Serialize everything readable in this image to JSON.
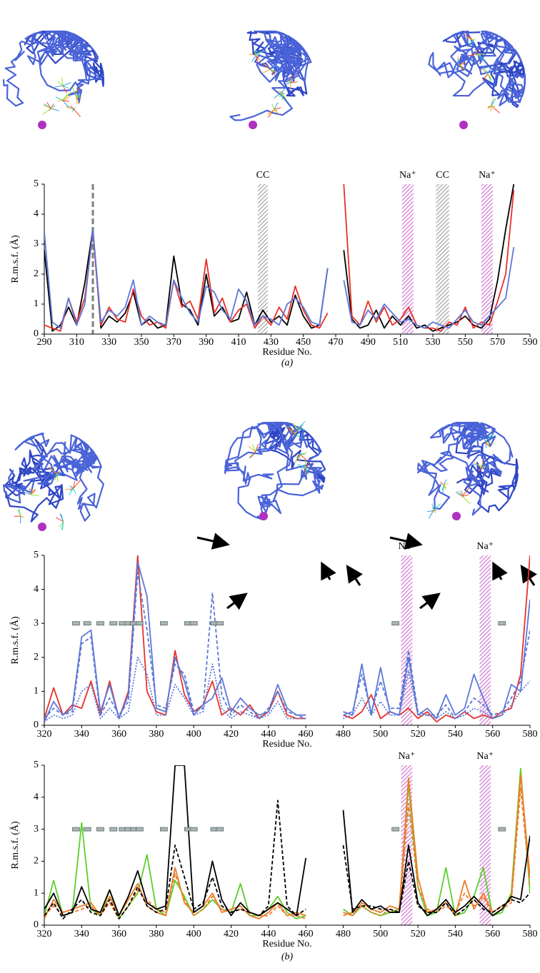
{
  "chart_data": [
    {
      "type": "line",
      "y_label": "R.m.s.f. (Å)",
      "x_label": "Residue No.",
      "panel_label": "(a)",
      "xlim": [
        290,
        590
      ],
      "xticks": [
        290,
        310,
        330,
        350,
        370,
        390,
        410,
        430,
        450,
        470,
        490,
        510,
        530,
        550,
        570,
        590
      ],
      "ylim": [
        0,
        5
      ],
      "yticks": [
        0,
        1,
        2,
        3,
        4,
        5
      ],
      "vline": {
        "x": 320,
        "color": "#7f7f7f"
      },
      "bands": [
        {
          "label": "CC",
          "from": 422,
          "to": 428,
          "color": "#a8a8a8"
        },
        {
          "label": "Na⁺",
          "from": 511,
          "to": 518,
          "color": "#d27fd2"
        },
        {
          "label": "CC",
          "from": 532,
          "to": 540,
          "color": "#a8a8a8"
        },
        {
          "label": "Na⁺",
          "from": 560,
          "to": 567,
          "color": "#d27fd2"
        }
      ],
      "x": [
        290,
        295,
        300,
        305,
        310,
        315,
        320,
        325,
        330,
        335,
        340,
        345,
        350,
        355,
        360,
        365,
        370,
        375,
        380,
        385,
        390,
        395,
        400,
        405,
        410,
        415,
        420,
        425,
        430,
        435,
        440,
        445,
        450,
        455,
        460,
        465,
        470,
        475,
        480,
        485,
        490,
        495,
        500,
        505,
        510,
        515,
        520,
        525,
        530,
        535,
        540,
        545,
        550,
        555,
        560,
        565,
        570,
        575,
        580
      ],
      "series": [
        {
          "color": "#000000",
          "dash": "solid",
          "values": [
            2.8,
            0.1,
            0.3,
            0.9,
            0.3,
            1.7,
            3.5,
            0.2,
            0.6,
            0.4,
            0.7,
            1.4,
            0.3,
            0.5,
            0.2,
            0.3,
            2.6,
            1.0,
            0.8,
            0.3,
            2.0,
            0.6,
            0.9,
            0.4,
            0.5,
            1.4,
            0.3,
            0.8,
            0.4,
            0.6,
            0.3,
            1.3,
            0.6,
            0.2,
            0.3,
            2.2,
            null,
            2.8,
            0.5,
            0.2,
            0.3,
            0.8,
            0.2,
            0.6,
            0.3,
            0.6,
            0.2,
            0.3,
            0.1,
            0.2,
            0.3,
            0.4,
            0.6,
            0.3,
            0.2,
            0.5,
            1.8,
            3.5,
            5.0
          ]
        },
        {
          "color": "#e8302a",
          "dash": "solid",
          "values": [
            0.3,
            0.2,
            0.1,
            1.2,
            0.4,
            1.2,
            3.4,
            0.3,
            0.9,
            0.5,
            0.4,
            1.5,
            0.6,
            0.3,
            0.4,
            0.2,
            1.8,
            0.9,
            1.1,
            0.5,
            2.5,
            0.7,
            1.2,
            0.4,
            0.8,
            1.0,
            0.2,
            0.6,
            0.3,
            0.9,
            0.5,
            1.6,
            0.8,
            0.3,
            0.2,
            0.7,
            null,
            5.0,
            0.6,
            0.3,
            1.1,
            0.4,
            0.9,
            0.3,
            0.5,
            0.9,
            0.3,
            0.2,
            0.2,
            0.1,
            0.4,
            0.3,
            0.9,
            0.2,
            0.4,
            0.3,
            1.1,
            2.0,
            4.8
          ]
        },
        {
          "color": "#5b78d8",
          "dash": "solid",
          "values": [
            3.4,
            0.4,
            0.2,
            1.2,
            0.3,
            1.0,
            3.5,
            0.4,
            0.8,
            0.6,
            0.9,
            1.8,
            0.3,
            0.6,
            0.4,
            0.3,
            1.8,
            1.2,
            0.7,
            0.4,
            1.6,
            1.4,
            0.8,
            0.5,
            1.5,
            1.1,
            0.3,
            0.6,
            0.5,
            0.3,
            1.0,
            1.2,
            0.9,
            0.4,
            0.3,
            2.2,
            null,
            1.8,
            0.4,
            0.3,
            0.8,
            0.5,
            1.0,
            0.7,
            0.4,
            0.5,
            0.3,
            0.2,
            0.4,
            0.3,
            0.2,
            0.5,
            0.8,
            0.4,
            0.3,
            0.6,
            0.9,
            1.2,
            2.9
          ]
        }
      ]
    },
    {
      "type": "line",
      "y_label": "R.m.s.f. (Å)",
      "x_label": "Residue No.",
      "xlim": [
        320,
        580
      ],
      "xticks": [
        320,
        340,
        360,
        380,
        400,
        420,
        440,
        460,
        480,
        500,
        520,
        540,
        560,
        580
      ],
      "ylim": [
        0,
        5
      ],
      "yticks": [
        0,
        1,
        2,
        3,
        4,
        5
      ],
      "bands": [
        {
          "label": "Na⁺",
          "from": 511,
          "to": 517,
          "color": "#d27fd2"
        },
        {
          "label": "Na⁺",
          "from": 553,
          "to": 559,
          "color": "#d27fd2"
        }
      ],
      "markers": {
        "y": 3,
        "color": "#a9b4b4",
        "x": [
          337,
          343,
          350,
          357,
          362,
          365,
          368,
          371,
          384,
          397,
          400,
          411,
          414,
          508,
          565
        ]
      },
      "x": [
        320,
        325,
        330,
        335,
        340,
        345,
        350,
        355,
        360,
        365,
        370,
        375,
        380,
        385,
        390,
        395,
        400,
        405,
        410,
        415,
        420,
        425,
        430,
        435,
        440,
        445,
        450,
        455,
        460,
        465,
        470,
        475,
        480,
        485,
        490,
        495,
        500,
        505,
        510,
        515,
        520,
        525,
        530,
        535,
        540,
        545,
        550,
        555,
        560,
        565,
        570,
        575,
        580
      ],
      "series": [
        {
          "color": "#e8302a",
          "dash": "solid",
          "values": [
            0.2,
            1.1,
            0.3,
            0.6,
            0.5,
            1.3,
            0.3,
            1.3,
            0.2,
            1.0,
            5.0,
            1.0,
            0.4,
            0.3,
            2.2,
            0.9,
            0.4,
            0.6,
            1.3,
            0.3,
            0.5,
            0.3,
            0.6,
            0.2,
            0.4,
            1.0,
            0.3,
            0.2,
            0.2,
            null,
            null,
            null,
            0.3,
            0.2,
            0.4,
            0.9,
            0.2,
            0.4,
            0.3,
            0.5,
            0.2,
            0.4,
            0.1,
            0.3,
            0.2,
            0.4,
            0.2,
            0.3,
            0.2,
            0.4,
            0.5,
            1.5,
            5.0
          ]
        },
        {
          "color": "#5b78d8",
          "dash": "solid",
          "values": [
            0.1,
            0.7,
            0.3,
            0.5,
            2.6,
            2.8,
            0.4,
            1.2,
            0.2,
            0.9,
            4.8,
            3.8,
            0.5,
            0.4,
            2.0,
            1.3,
            0.3,
            0.6,
            0.8,
            1.4,
            0.4,
            0.8,
            0.5,
            0.3,
            0.4,
            1.2,
            0.5,
            0.3,
            0.3,
            null,
            null,
            null,
            0.4,
            0.3,
            1.8,
            0.3,
            1.7,
            0.4,
            0.3,
            2.0,
            0.3,
            0.5,
            0.2,
            0.9,
            0.3,
            0.5,
            1.5,
            0.8,
            0.2,
            0.3,
            1.2,
            1.0,
            3.7
          ]
        },
        {
          "color": "#5b78d8",
          "dash": "dashed",
          "values": [
            0.2,
            0.5,
            0.3,
            0.4,
            2.4,
            2.6,
            0.3,
            0.8,
            0.3,
            0.7,
            4.5,
            2.8,
            0.6,
            0.5,
            1.8,
            1.5,
            0.4,
            0.5,
            3.9,
            0.9,
            0.3,
            0.6,
            0.4,
            0.2,
            0.5,
            1.0,
            0.4,
            0.3,
            0.2,
            null,
            null,
            null,
            0.3,
            0.4,
            1.5,
            0.4,
            1.3,
            0.5,
            0.5,
            2.2,
            0.4,
            0.3,
            0.3,
            0.6,
            0.2,
            0.4,
            0.8,
            0.6,
            0.3,
            0.4,
            0.8,
            1.3,
            2.8
          ]
        },
        {
          "color": "#5b78d8",
          "dash": "dotted",
          "values": [
            0.1,
            0.3,
            0.2,
            0.3,
            1.0,
            1.2,
            0.2,
            0.5,
            0.2,
            0.4,
            2.0,
            1.5,
            0.3,
            0.3,
            1.2,
            0.8,
            0.3,
            0.4,
            1.8,
            0.5,
            0.2,
            0.4,
            0.3,
            0.2,
            0.3,
            0.7,
            0.2,
            0.2,
            0.2,
            null,
            null,
            null,
            0.2,
            0.3,
            0.8,
            0.3,
            0.7,
            0.3,
            0.3,
            1.6,
            0.3,
            0.3,
            0.2,
            0.4,
            0.2,
            0.3,
            0.5,
            0.4,
            0.2,
            0.3,
            0.6,
            1.0,
            1.3
          ]
        }
      ]
    },
    {
      "type": "line",
      "y_label": "R.m.s.f. (Å)",
      "x_label": "Residue No.",
      "panel_label": "(b)",
      "xlim": [
        320,
        580
      ],
      "xticks": [
        320,
        340,
        360,
        380,
        400,
        420,
        440,
        460,
        480,
        500,
        520,
        540,
        560,
        580
      ],
      "ylim": [
        0,
        5
      ],
      "yticks": [
        0,
        1,
        2,
        3,
        4,
        5
      ],
      "bands": [
        {
          "label": "Na⁺",
          "from": 511,
          "to": 517,
          "color": "#d27fd2"
        },
        {
          "label": "Na⁺",
          "from": 553,
          "to": 559,
          "color": "#d27fd2"
        }
      ],
      "markers": {
        "y": 3,
        "color": "#a9b4b4",
        "x": [
          337,
          343,
          350,
          357,
          362,
          365,
          368,
          371,
          384,
          397,
          400,
          411,
          414,
          508,
          565
        ]
      },
      "x": [
        320,
        325,
        330,
        335,
        340,
        345,
        350,
        355,
        360,
        365,
        370,
        375,
        380,
        385,
        390,
        395,
        400,
        405,
        410,
        415,
        420,
        425,
        430,
        435,
        440,
        445,
        450,
        455,
        460,
        465,
        470,
        475,
        480,
        485,
        490,
        495,
        500,
        505,
        510,
        515,
        520,
        525,
        530,
        535,
        540,
        545,
        550,
        555,
        560,
        565,
        570,
        575,
        580
      ],
      "series": [
        {
          "color": "#5ccf28",
          "dash": "solid",
          "values": [
            0.3,
            1.4,
            0.3,
            0.4,
            3.2,
            0.5,
            0.3,
            1.1,
            0.2,
            0.6,
            1.0,
            2.2,
            0.5,
            0.3,
            1.4,
            0.9,
            0.3,
            0.5,
            0.8,
            0.5,
            0.4,
            1.3,
            0.3,
            0.3,
            0.5,
            0.9,
            0.4,
            0.2,
            0.3,
            null,
            null,
            null,
            0.5,
            0.3,
            0.6,
            0.4,
            0.3,
            0.4,
            0.5,
            4.4,
            1.2,
            0.3,
            0.4,
            1.8,
            0.3,
            0.4,
            0.9,
            1.8,
            0.3,
            0.4,
            1.0,
            4.9,
            1.0
          ]
        },
        {
          "color": "#f07b2b",
          "dash": "solid",
          "values": [
            0.2,
            0.8,
            0.4,
            0.5,
            0.6,
            0.7,
            0.3,
            0.9,
            0.3,
            0.8,
            1.3,
            0.6,
            0.4,
            0.3,
            1.8,
            0.7,
            0.4,
            0.6,
            1.0,
            0.4,
            0.5,
            0.6,
            0.3,
            0.2,
            0.4,
            0.7,
            0.3,
            0.4,
            0.3,
            null,
            null,
            null,
            0.4,
            0.3,
            0.7,
            0.5,
            0.4,
            0.6,
            0.5,
            4.6,
            1.5,
            0.4,
            0.5,
            0.7,
            0.3,
            1.4,
            0.5,
            1.0,
            0.4,
            0.6,
            0.8,
            4.7,
            1.5
          ]
        },
        {
          "color": "#f07b2b",
          "dash": "dashed",
          "values": [
            0.3,
            0.6,
            0.3,
            0.4,
            0.5,
            0.6,
            0.3,
            0.7,
            0.2,
            0.6,
            1.1,
            0.8,
            0.5,
            0.4,
            1.6,
            0.8,
            0.3,
            0.5,
            0.9,
            0.5,
            0.4,
            0.5,
            0.4,
            0.3,
            0.3,
            0.6,
            0.3,
            0.3,
            0.2,
            null,
            null,
            null,
            0.3,
            0.4,
            0.6,
            0.4,
            0.3,
            0.5,
            0.4,
            3.8,
            1.2,
            0.5,
            0.4,
            0.6,
            0.4,
            1.0,
            0.6,
            0.9,
            0.3,
            0.5,
            0.7,
            4.3,
            1.2
          ]
        },
        {
          "color": "#000000",
          "dash": "solid",
          "values": [
            0.5,
            1.0,
            0.3,
            0.4,
            1.2,
            0.5,
            0.4,
            1.1,
            0.3,
            0.9,
            1.7,
            0.7,
            0.5,
            0.6,
            5.0,
            5.0,
            0.4,
            0.6,
            2.0,
            0.8,
            0.3,
            0.7,
            0.4,
            0.3,
            0.5,
            0.7,
            0.5,
            0.3,
            2.1,
            null,
            null,
            null,
            3.6,
            0.4,
            0.8,
            0.5,
            0.6,
            0.4,
            0.4,
            2.5,
            0.7,
            0.3,
            0.5,
            0.8,
            0.4,
            0.6,
            0.9,
            0.6,
            0.3,
            0.5,
            0.9,
            0.8,
            2.8
          ]
        },
        {
          "color": "#000000",
          "dash": "dashed",
          "values": [
            0.3,
            0.7,
            0.2,
            0.5,
            0.8,
            0.4,
            0.3,
            0.8,
            0.2,
            0.6,
            1.2,
            0.6,
            0.4,
            0.5,
            2.5,
            1.5,
            0.5,
            0.7,
            1.5,
            0.6,
            0.4,
            0.5,
            0.4,
            0.3,
            0.6,
            3.9,
            0.6,
            0.3,
            0.5,
            null,
            null,
            null,
            2.5,
            0.5,
            0.6,
            0.6,
            0.5,
            0.5,
            0.4,
            2.0,
            0.6,
            0.4,
            0.4,
            0.7,
            0.3,
            0.5,
            0.8,
            0.5,
            0.4,
            0.6,
            0.8,
            0.7,
            1.0
          ]
        }
      ]
    }
  ]
}
